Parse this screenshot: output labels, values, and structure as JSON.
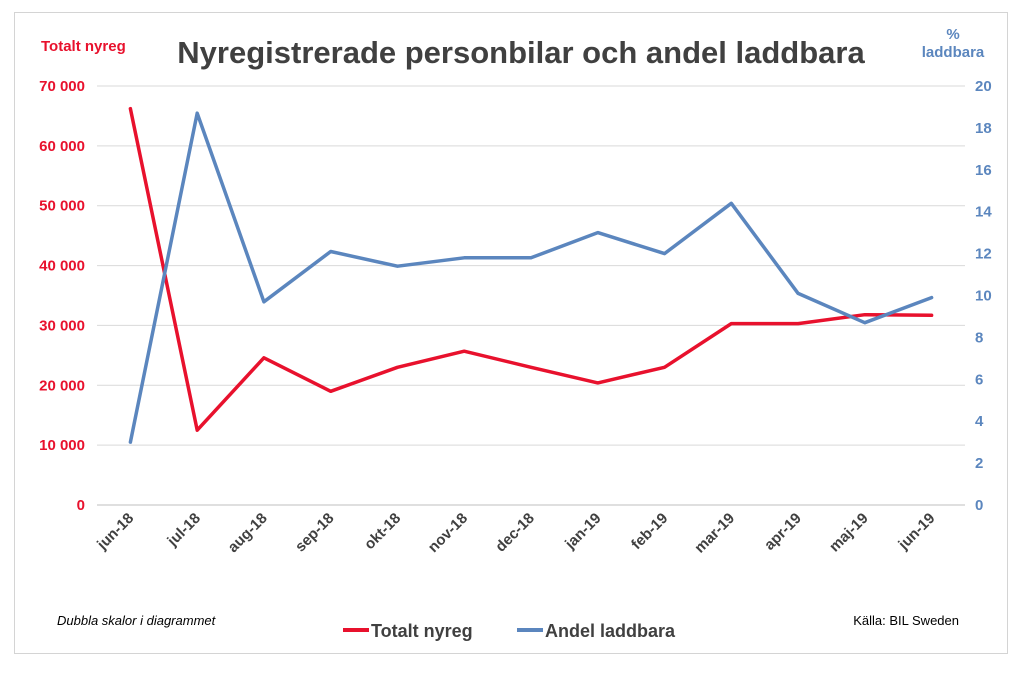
{
  "chart_data": {
    "type": "line",
    "title": "Nyregistrerade personbilar och andel laddbara",
    "y_left_label": "Totalt nyreg",
    "y_right_label_lines": [
      "%",
      "laddbara"
    ],
    "categories": [
      "jun-18",
      "jul-18",
      "aug-18",
      "sep-18",
      "okt-18",
      "nov-18",
      "dec-18",
      "jan-19",
      "feb-19",
      "mar-19",
      "apr-19",
      "maj-19",
      "jun-19"
    ],
    "y_left_range": [
      0,
      70000
    ],
    "y_left_ticks": [
      0,
      10000,
      20000,
      30000,
      40000,
      50000,
      60000,
      70000
    ],
    "y_left_tick_labels": [
      "0",
      "10 000",
      "20 000",
      "30 000",
      "40 000",
      "50 000",
      "60 000",
      "70 000"
    ],
    "y_right_range": [
      0,
      20
    ],
    "y_right_ticks": [
      0,
      2,
      4,
      6,
      8,
      10,
      12,
      14,
      16,
      18,
      20
    ],
    "y_right_tick_labels": [
      "0",
      "2",
      "4",
      "6",
      "8",
      "10",
      "12",
      "14",
      "16",
      "18",
      "20"
    ],
    "grid": true,
    "legend_position": "bottom",
    "series": [
      {
        "name": "Totalt nyreg",
        "axis": "left",
        "color": "#e8112d",
        "values": [
          66200,
          12500,
          24600,
          19000,
          23000,
          25700,
          23000,
          20400,
          23000,
          30300,
          30300,
          31800,
          31700
        ]
      },
      {
        "name": "Andel laddbara",
        "axis": "right",
        "color": "#5b86be",
        "values": [
          3.0,
          18.7,
          9.7,
          12.1,
          11.4,
          11.8,
          11.8,
          13.0,
          12.0,
          14.4,
          10.1,
          8.7,
          9.9
        ]
      }
    ]
  },
  "footnote": "Dubbla skalor i diagrammet",
  "source": "Källa: BIL Sweden",
  "colors": {
    "left_axis": "#e8112d",
    "right_axis": "#5b86be",
    "title": "#404040",
    "grid": "#d9d9d9"
  }
}
